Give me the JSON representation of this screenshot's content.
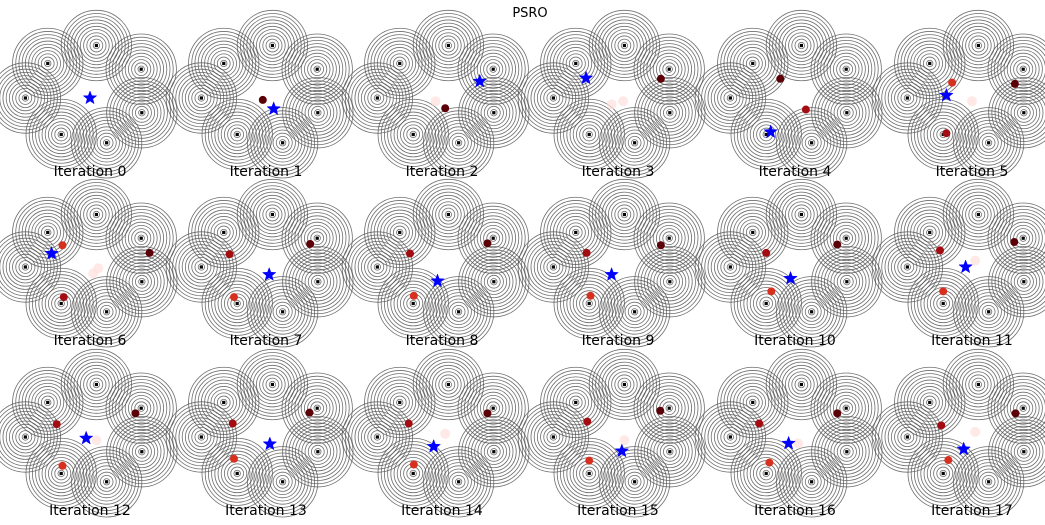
{
  "chart_data": {
    "type": "scatter",
    "title": "PSRO",
    "panels": [
      {
        "label": "Iteration 0"
      },
      {
        "label": "Iteration 1"
      },
      {
        "label": "Iteration 2"
      },
      {
        "label": "Iteration 3"
      },
      {
        "label": "Iteration 4"
      },
      {
        "label": "Iteration 5"
      },
      {
        "label": "Iteration 6"
      },
      {
        "label": "Iteration 7"
      },
      {
        "label": "Iteration 8"
      },
      {
        "label": "Iteration 9"
      },
      {
        "label": "Iteration 10"
      },
      {
        "label": "Iteration 11"
      },
      {
        "label": "Iteration 12"
      },
      {
        "label": "Iteration 13"
      },
      {
        "label": "Iteration 14"
      },
      {
        "label": "Iteration 15"
      },
      {
        "label": "Iteration 16"
      },
      {
        "label": "Iteration 17"
      }
    ],
    "colors": {
      "contour": "#555555",
      "center_marker": "#000000",
      "population_dark": "#5c0008",
      "population_mid": "#a30d12",
      "population_light": "#d7301f",
      "faint": "#fde0dd",
      "star": "#0000ff"
    },
    "grid": false,
    "axes_visible": false
  }
}
